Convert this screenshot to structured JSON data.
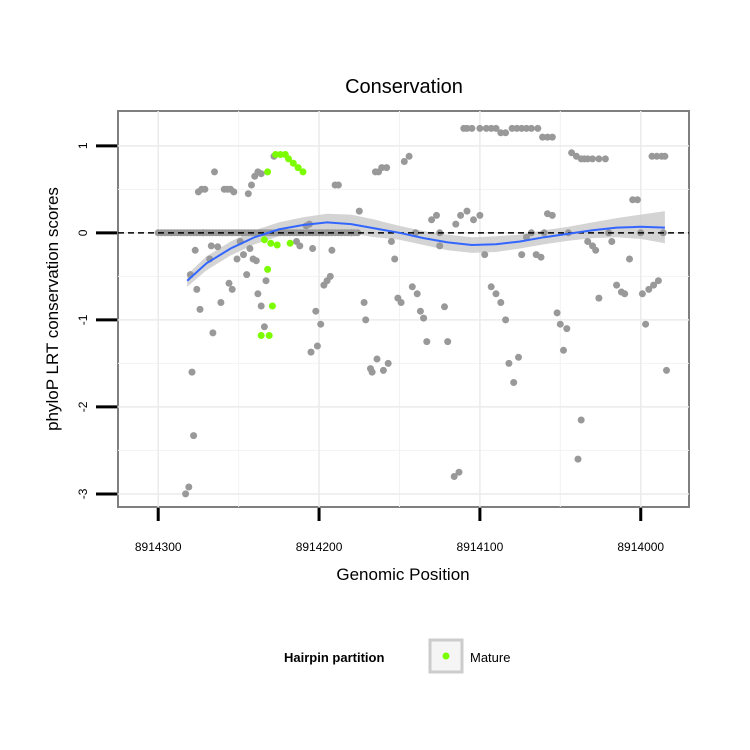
{
  "chart_data": {
    "type": "scatter",
    "title": "Conservation",
    "xlabel": "Genomic Position",
    "ylabel": "phyloP LRT conservation scores",
    "x_reversed": true,
    "xlim": [
      8914325,
      8913970
    ],
    "ylim": [
      -3.15,
      1.4
    ],
    "x_ticks": [
      8914300,
      8914200,
      8914100,
      8914000
    ],
    "x_tick_labels": [
      "8914300",
      "8914200",
      "8914100",
      "8914000"
    ],
    "y_ticks": [
      1,
      0,
      -1,
      -2,
      -3
    ],
    "y_tick_labels": [
      "1",
      "0",
      "-1",
      "-2",
      "-3"
    ],
    "grid": true,
    "reference_line": {
      "y": 0,
      "style": "dashed",
      "color": "#000000"
    },
    "legend": {
      "title": "Hairpin partition",
      "placement": "bottom",
      "entries": [
        {
          "label": "Mature",
          "color": "#7cfc00"
        }
      ]
    },
    "colors": {
      "other": "#999999",
      "mature": "#7cfc00",
      "smooth": "#3366ff",
      "band": "#cccccc"
    },
    "smooth": {
      "x": [
        8914282,
        8914270,
        8914255,
        8914240,
        8914225,
        8914210,
        8914195,
        8914180,
        8914165,
        8914150,
        8914135,
        8914120,
        8914105,
        8914090,
        8914075,
        8914060,
        8914045,
        8914030,
        8914015,
        8914000,
        8913985
      ],
      "y": [
        -0.55,
        -0.35,
        -0.18,
        -0.05,
        0.04,
        0.09,
        0.12,
        0.1,
        0.05,
        0.0,
        -0.06,
        -0.11,
        -0.14,
        -0.13,
        -0.1,
        -0.05,
        -0.01,
        0.03,
        0.06,
        0.07,
        0.06
      ],
      "lower": [
        -0.62,
        -0.43,
        -0.26,
        -0.13,
        -0.04,
        0.0,
        0.02,
        -0.01,
        -0.05,
        -0.08,
        -0.14,
        -0.2,
        -0.23,
        -0.22,
        -0.18,
        -0.13,
        -0.09,
        -0.06,
        -0.05,
        -0.07,
        -0.12
      ],
      "upper": [
        -0.48,
        -0.27,
        -0.1,
        0.03,
        0.12,
        0.18,
        0.22,
        0.21,
        0.15,
        0.08,
        0.02,
        -0.02,
        -0.05,
        -0.04,
        -0.02,
        0.03,
        0.07,
        0.12,
        0.17,
        0.21,
        0.25
      ]
    },
    "series": [
      {
        "name": "Mature",
        "points": [
          [
            8914232,
            0.7
          ],
          [
            8914227,
            0.9
          ],
          [
            8914224,
            0.9
          ],
          [
            8914221,
            0.9
          ],
          [
            8914219,
            0.85
          ],
          [
            8914216,
            0.8
          ],
          [
            8914213,
            0.75
          ],
          [
            8914210,
            0.7
          ],
          [
            8914234,
            -0.08
          ],
          [
            8914230,
            -0.12
          ],
          [
            8914226,
            -0.14
          ],
          [
            8914218,
            -0.12
          ],
          [
            8914232,
            -0.42
          ],
          [
            8914229,
            -0.84
          ],
          [
            8914236,
            -1.18
          ],
          [
            8914231,
            -1.18
          ]
        ]
      },
      {
        "name": "",
        "points": [
          [
            8914283,
            -3.0
          ],
          [
            8914281,
            -2.92
          ],
          [
            8914279,
            -1.6
          ],
          [
            8914278,
            -2.33
          ],
          [
            8914280,
            -0.48
          ],
          [
            8914277,
            -0.2
          ],
          [
            8914276,
            -0.65
          ],
          [
            8914274,
            -0.88
          ],
          [
            8914275,
            0.47
          ],
          [
            8914273,
            0.5
          ],
          [
            8914271,
            0.5
          ],
          [
            8914272,
            0.0
          ],
          [
            8914268,
            -0.3
          ],
          [
            8914267,
            -0.15
          ],
          [
            8914265,
            0.7
          ],
          [
            8914266,
            -1.15
          ],
          [
            8914263,
            -0.16
          ],
          [
            8914261,
            -0.8
          ],
          [
            8914259,
            0.5
          ],
          [
            8914257,
            0.5
          ],
          [
            8914255,
            0.5
          ],
          [
            8914253,
            0.47
          ],
          [
            8914256,
            -0.58
          ],
          [
            8914254,
            -0.65
          ],
          [
            8914251,
            -0.3
          ],
          [
            8914249,
            -0.1
          ],
          [
            8914247,
            -0.25
          ],
          [
            8914244,
            0.45
          ],
          [
            8914242,
            0.55
          ],
          [
            8914240,
            0.65
          ],
          [
            8914238,
            0.7
          ],
          [
            8914236,
            0.68
          ],
          [
            8914241,
            -0.3
          ],
          [
            8914239,
            -0.32
          ],
          [
            8914238,
            -0.7
          ],
          [
            8914236,
            -0.84
          ],
          [
            8914234,
            -1.08
          ],
          [
            8914233,
            -0.55
          ],
          [
            8914245,
            -0.48
          ],
          [
            8914243,
            -0.18
          ],
          [
            8914228,
            0.88
          ],
          [
            8914214,
            -0.1
          ],
          [
            8914212,
            -0.15
          ],
          [
            8914208,
            0.08
          ],
          [
            8914206,
            0.1
          ],
          [
            8914204,
            -0.18
          ],
          [
            8914202,
            -0.9
          ],
          [
            8914205,
            -1.37
          ],
          [
            8914199,
            -1.05
          ],
          [
            8914197,
            -0.6
          ],
          [
            8914195,
            -0.55
          ],
          [
            8914193,
            -0.5
          ],
          [
            8914190,
            0.55
          ],
          [
            8914188,
            0.55
          ],
          [
            8914192,
            -0.2
          ],
          [
            8914201,
            -1.3
          ],
          [
            8914175,
            0.25
          ],
          [
            8914172,
            -0.8
          ],
          [
            8914171,
            -1.0
          ],
          [
            8914168,
            -1.56
          ],
          [
            8914165,
            0.7
          ],
          [
            8914163,
            0.7
          ],
          [
            8914161,
            0.75
          ],
          [
            8914158,
            0.75
          ],
          [
            8914167,
            -1.6
          ],
          [
            8914164,
            -1.45
          ],
          [
            8914160,
            -1.58
          ],
          [
            8914157,
            -1.5
          ],
          [
            8914155,
            -0.1
          ],
          [
            8914153,
            -0.3
          ],
          [
            8914151,
            -0.75
          ],
          [
            8914149,
            -0.8
          ],
          [
            8914147,
            0.82
          ],
          [
            8914144,
            0.88
          ],
          [
            8914142,
            -0.62
          ],
          [
            8914139,
            -0.7
          ],
          [
            8914137,
            -0.9
          ],
          [
            8914135,
            -0.98
          ],
          [
            8914133,
            -1.25
          ],
          [
            8914130,
            0.15
          ],
          [
            8914127,
            0.2
          ],
          [
            8914125,
            -0.15
          ],
          [
            8914122,
            -0.85
          ],
          [
            8914120,
            -1.25
          ],
          [
            8914116,
            -2.8
          ],
          [
            8914113,
            -2.75
          ],
          [
            8914110,
            1.2
          ],
          [
            8914108,
            1.2
          ],
          [
            8914105,
            1.2
          ],
          [
            8914100,
            1.2
          ],
          [
            8914096,
            1.2
          ],
          [
            8914093,
            1.2
          ],
          [
            8914090,
            1.2
          ],
          [
            8914087,
            1.15
          ],
          [
            8914084,
            1.15
          ],
          [
            8914080,
            1.2
          ],
          [
            8914077,
            1.2
          ],
          [
            8914074,
            1.2
          ],
          [
            8914071,
            1.2
          ],
          [
            8914068,
            1.2
          ],
          [
            8914064,
            1.2
          ],
          [
            8914061,
            1.1
          ],
          [
            8914058,
            1.1
          ],
          [
            8914055,
            1.1
          ],
          [
            8914115,
            0.1
          ],
          [
            8914112,
            0.2
          ],
          [
            8914108,
            0.25
          ],
          [
            8914104,
            0.15
          ],
          [
            8914100,
            0.2
          ],
          [
            8914097,
            -0.25
          ],
          [
            8914093,
            -0.62
          ],
          [
            8914090,
            -0.7
          ],
          [
            8914087,
            -0.8
          ],
          [
            8914084,
            -1.0
          ],
          [
            8914082,
            -1.5
          ],
          [
            8914079,
            -1.72
          ],
          [
            8914076,
            -1.43
          ],
          [
            8914074,
            -0.25
          ],
          [
            8914071,
            -0.05
          ],
          [
            8914068,
            0.0
          ],
          [
            8914065,
            -0.25
          ],
          [
            8914062,
            -0.28
          ],
          [
            8914058,
            0.22
          ],
          [
            8914055,
            0.2
          ],
          [
            8914052,
            -0.92
          ],
          [
            8914050,
            -1.05
          ],
          [
            8914048,
            -1.35
          ],
          [
            8914046,
            -1.1
          ],
          [
            8914043,
            0.92
          ],
          [
            8914040,
            0.88
          ],
          [
            8914037,
            0.85
          ],
          [
            8914035,
            0.85
          ],
          [
            8914033,
            -0.1
          ],
          [
            8914030,
            -0.15
          ],
          [
            8914028,
            -0.2
          ],
          [
            8914026,
            -0.75
          ],
          [
            8914039,
            -2.6
          ],
          [
            8914037,
            -2.15
          ],
          [
            8914033,
            0.85
          ],
          [
            8914030,
            0.85
          ],
          [
            8914026,
            0.85
          ],
          [
            8914022,
            0.85
          ],
          [
            8914018,
            -0.1
          ],
          [
            8914015,
            -0.6
          ],
          [
            8914012,
            -0.68
          ],
          [
            8914010,
            -0.7
          ],
          [
            8914007,
            -0.3
          ],
          [
            8914005,
            0.38
          ],
          [
            8914002,
            0.38
          ],
          [
            8913999,
            -0.7
          ],
          [
            8913997,
            -1.05
          ],
          [
            8913995,
            -0.65
          ],
          [
            8913993,
            0.88
          ],
          [
            8913990,
            0.88
          ],
          [
            8913987,
            0.88
          ],
          [
            8913985,
            0.88
          ],
          [
            8913992,
            -0.6
          ],
          [
            8913989,
            -0.55
          ],
          [
            8913986,
            0.0
          ],
          [
            8913984,
            -1.58
          ],
          [
            8914060,
            0.0
          ],
          [
            8914045,
            0.0
          ],
          [
            8914020,
            0.0
          ],
          [
            8914000,
            0.0
          ],
          [
            8914140,
            0.0
          ],
          [
            8914125,
            0.0
          ],
          [
            8914195,
            0.0
          ],
          [
            8914180,
            0.0
          ]
        ],
        "band_points": {
          "from": 8914300,
          "to": 8914175,
          "y": 0.0
        }
      }
    ]
  }
}
